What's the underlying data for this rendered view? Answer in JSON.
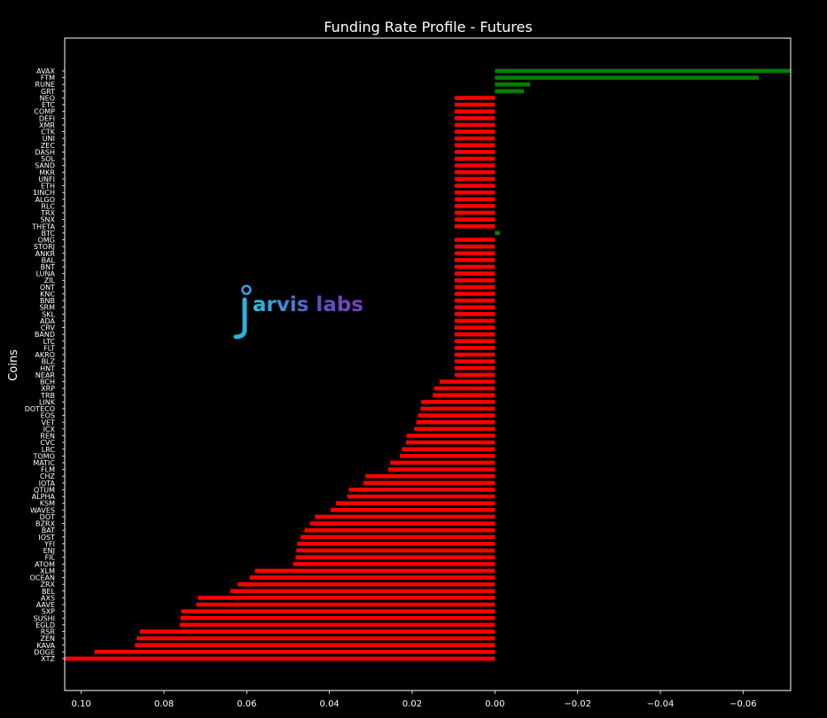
{
  "chart_data": {
    "type": "bar",
    "orientation": "horizontal",
    "title": "Funding Rate Profile - Futures",
    "xlabel": "",
    "ylabel": "Coins",
    "xlim": [
      0.104,
      -0.0715
    ],
    "x_inverted": true,
    "x_ticks": [
      0.1,
      0.08,
      0.06,
      0.04,
      0.02,
      0.0,
      -0.02,
      -0.04,
      -0.06
    ],
    "x_tick_labels": [
      "0.10",
      "0.08",
      "0.06",
      "0.04",
      "0.02",
      "0.00",
      "−0.02",
      "−0.04",
      "−0.06"
    ],
    "grid": false,
    "colors": {
      "positive_rate": "#ff0000",
      "negative_rate": "#008000",
      "background": "#000000",
      "text": "#ffffff"
    },
    "categories": [
      "AVAX",
      "FTM",
      "RUNE",
      "GRT",
      "NEO",
      "ETC",
      "COMP",
      "DEFI",
      "XMR",
      "CTK",
      "UNI",
      "ZEC",
      "DASH",
      "SOL",
      "SAND",
      "MKR",
      "UNFI",
      "ETH",
      "1INCH",
      "ALGO",
      "RLC",
      "TRX",
      "SNX",
      "THETA",
      "BTC",
      "OMG",
      "STORJ",
      "ANKR",
      "BAL",
      "BNT",
      "LUNA",
      "ZIL",
      "ONT",
      "KNC",
      "BNB",
      "SRM",
      "SKL",
      "ADA",
      "CRV",
      "BAND",
      "LTC",
      "FLT",
      "AKRO",
      "BLZ",
      "HNT",
      "NEAR",
      "BCH",
      "XRP",
      "TRB",
      "LINK",
      "DOTECO",
      "EOS",
      "VET",
      "ICX",
      "REN",
      "CVC",
      "LRC",
      "TOMO",
      "MATIC",
      "FLM",
      "CHZ",
      "IOTA",
      "QTUM",
      "ALPHA",
      "KSM",
      "WAVES",
      "DOT",
      "BZRX",
      "BAT",
      "IOST",
      "YFI",
      "ENJ",
      "FIL",
      "ATOM",
      "XLM",
      "OCEAN",
      "ZRX",
      "BEL",
      "AXS",
      "AAVE",
      "SXP",
      "SUSHI",
      "EGLD",
      "RSR",
      "ZEN",
      "KAVA",
      "DOGE",
      "XTZ"
    ],
    "values": [
      -0.0715,
      -0.0638,
      -0.0085,
      -0.007,
      0.0097,
      0.0097,
      0.0097,
      0.0097,
      0.0097,
      0.0097,
      0.0097,
      0.0097,
      0.0097,
      0.0097,
      0.0097,
      0.0097,
      0.0097,
      0.0097,
      0.0097,
      0.0097,
      0.0097,
      0.0097,
      0.0097,
      0.0097,
      -0.0012,
      0.0097,
      0.0097,
      0.0097,
      0.0097,
      0.0097,
      0.0097,
      0.0097,
      0.0097,
      0.0097,
      0.0097,
      0.0097,
      0.0097,
      0.0097,
      0.0097,
      0.0097,
      0.0097,
      0.0097,
      0.0097,
      0.0097,
      0.0097,
      0.0097,
      0.0134,
      0.0147,
      0.015,
      0.0178,
      0.018,
      0.0186,
      0.019,
      0.0195,
      0.0213,
      0.0215,
      0.0225,
      0.023,
      0.0253,
      0.0258,
      0.0313,
      0.0318,
      0.0353,
      0.0357,
      0.0385,
      0.0397,
      0.0435,
      0.0447,
      0.046,
      0.047,
      0.0478,
      0.048,
      0.0482,
      0.0488,
      0.058,
      0.0593,
      0.0622,
      0.064,
      0.0718,
      0.0722,
      0.0758,
      0.076,
      0.0762,
      0.0858,
      0.0866,
      0.087,
      0.0968,
      0.104
    ],
    "overlay_bars": [
      {
        "category": "BNB",
        "value": 0.005
      }
    ]
  },
  "watermark": {
    "text": "arvis labs",
    "letter": "j"
  }
}
